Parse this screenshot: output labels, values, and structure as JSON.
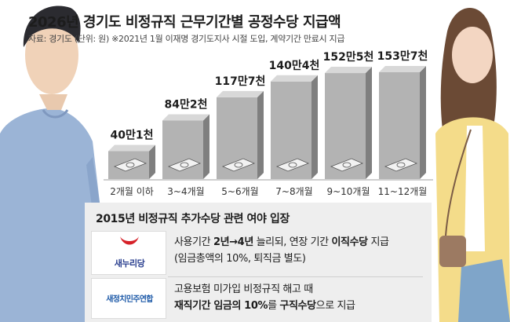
{
  "header": {
    "title": "2026년 경기도 비정규직 근무기간별 공정수당 지급액",
    "source": "자료: 경기도 (단위: 원) ※2021년 1월 이재명 경기도지사 시절 도입, 계약기간 만료시 지급"
  },
  "chart_data": {
    "type": "bar",
    "title": "2026년 경기도 비정규직 근무기간별 공정수당 지급액",
    "categories": [
      "2개월 이하",
      "3~4개월",
      "5~6개월",
      "7~8개월",
      "9~10개월",
      "11~12개월"
    ],
    "values": [
      401000,
      842000,
      1177000,
      1404000,
      1525000,
      1537000
    ],
    "value_labels": [
      "40만1천",
      "84만2천",
      "117만7천",
      "140만4천",
      "152만5천",
      "153만7천"
    ],
    "unit": "원",
    "colors": {
      "bar_front": "#b3b3b3",
      "bar_side": "#7f7f7f",
      "bar_top": "#d8d8d8",
      "baseline": "#cfcfcf"
    }
  },
  "policy": {
    "title": "2015년 비정규직 추가수당 관련 여야 입장",
    "rows": [
      {
        "party": "새누리당",
        "line1_a": "사용기간 ",
        "line1_b": "2년→4년",
        "line1_c": " 늘리되, 연장 기간 ",
        "line1_d": "이직수당",
        "line1_e": " 지급",
        "line2": "(임금총액의 10%, 퇴직금 별도)"
      },
      {
        "party": "새정치민주연합",
        "line1": "고용보험 미가입 비정규직 해고 때",
        "line2_a": "재직기간 임금의 10%",
        "line2_b": "를 ",
        "line2_c": "구직수당",
        "line2_d": "으로 지급"
      }
    ]
  },
  "icons": [
    "money-bill-icon",
    "saenuri-logo-icon",
    "npad-logo-icon"
  ],
  "accent_colors": {
    "saenuri_red": "#d62128",
    "saenuri_blue": "#2a3f8f",
    "npad_blue": "#1e5aa8"
  }
}
